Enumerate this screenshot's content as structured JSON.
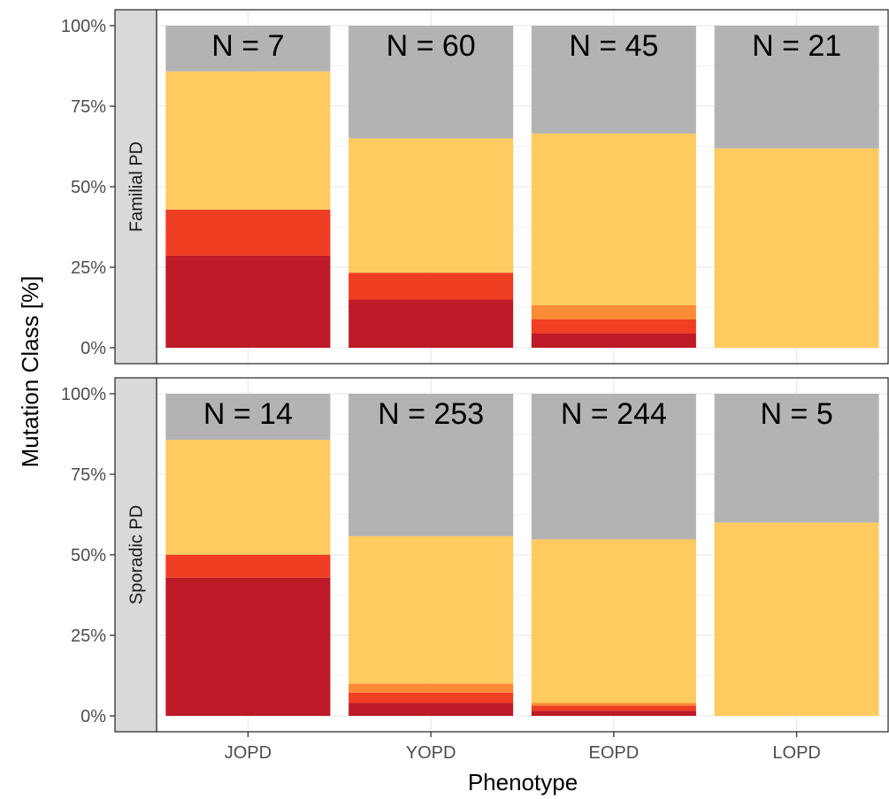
{
  "chart_data": {
    "type": "bar",
    "stacked": true,
    "xlabel": "Phenotype",
    "ylabel": "Mutation Class [%]",
    "categories": [
      "JOPD",
      "YOPD",
      "EOPD",
      "LOPD"
    ],
    "ylim": [
      0,
      100
    ],
    "y_ticks": [
      "0%",
      "25%",
      "50%",
      "75%",
      "100%"
    ],
    "grid": true,
    "legend": "none",
    "segment_colors": [
      "#be1a27",
      "#f03e23",
      "#fc8b37",
      "#fdcb60",
      "#b3b3b3"
    ],
    "panels": [
      {
        "strip": "Familial PD",
        "n_labels": [
          "N = 7",
          "N = 60",
          "N = 45",
          "N = 21"
        ],
        "series": [
          {
            "values": [
              28.6,
              15.0,
              4.4,
              0
            ]
          },
          {
            "values": [
              14.3,
              8.3,
              4.4,
              0
            ]
          },
          {
            "values": [
              0,
              0,
              4.4,
              0
            ]
          },
          {
            "values": [
              42.9,
              41.7,
              53.3,
              61.9
            ]
          },
          {
            "values": [
              14.2,
              35.0,
              33.5,
              38.1
            ]
          }
        ]
      },
      {
        "strip": "Sporadic PD",
        "n_labels": [
          "N = 14",
          "N = 253",
          "N = 244",
          "N = 5"
        ],
        "series": [
          {
            "values": [
              42.9,
              4.0,
              1.6,
              0
            ]
          },
          {
            "values": [
              7.1,
              3.2,
              1.6,
              0
            ]
          },
          {
            "values": [
              0,
              2.8,
              0.8,
              0
            ]
          },
          {
            "values": [
              35.7,
              45.8,
              50.8,
              60.0
            ]
          },
          {
            "values": [
              14.3,
              44.2,
              45.2,
              40.0
            ]
          }
        ]
      }
    ]
  }
}
